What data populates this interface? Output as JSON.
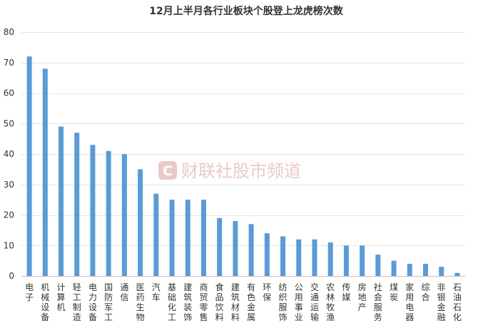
{
  "chart_data": {
    "type": "bar",
    "title": "12月上半月各行业板块个股登上龙虎榜次数",
    "xlabel": "",
    "ylabel": "",
    "ylim": [
      0,
      80
    ],
    "yticks": [
      0,
      10,
      20,
      30,
      40,
      50,
      60,
      70,
      80
    ],
    "grid": true,
    "legend": "none",
    "bar_color": "#5b9bd5",
    "categories": [
      "电子",
      "机械设备",
      "计算机",
      "轻工制造",
      "电力设备",
      "国防军工",
      "通信",
      "医药生物",
      "汽车",
      "基础化工",
      "建筑装饰",
      "商贸零售",
      "食品饮料",
      "建筑材料",
      "有色金属",
      "环保",
      "纺织服饰",
      "公用事业",
      "交通运输",
      "农林牧渔",
      "传媒",
      "房地产",
      "社会服务",
      "煤炭",
      "家用电器",
      "综合",
      "非银金融",
      "石油石化"
    ],
    "values": [
      72,
      68,
      49,
      47,
      43,
      41,
      40,
      35,
      27,
      25,
      25,
      25,
      19,
      18,
      17,
      14,
      13,
      12,
      12,
      11,
      10,
      10,
      7,
      5,
      4,
      4,
      3,
      1
    ]
  },
  "watermark": {
    "logo_letter": "C",
    "text": "财联社股市频道",
    "color": "#e9c9c9"
  }
}
